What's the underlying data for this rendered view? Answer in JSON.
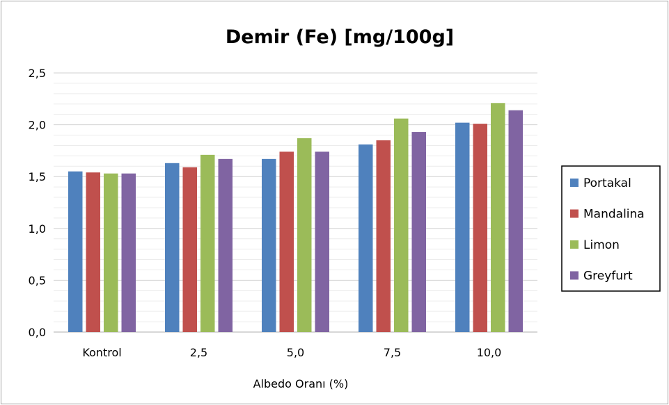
{
  "chart_data": {
    "type": "bar",
    "title": "Demir (Fe) [mg/100g]",
    "xlabel": "Albedo Oranı (%)",
    "ylabel": "",
    "categories": [
      "Kontrol",
      "2,5",
      "5,0",
      "7,5",
      "10,0"
    ],
    "y_ticks": [
      "0,0",
      "0,5",
      "1,0",
      "1,5",
      "2,0",
      "2,5"
    ],
    "ylim": [
      0,
      2.5
    ],
    "grid": true,
    "legend_position": "right",
    "series": [
      {
        "name": "Portakal",
        "color": "#4f81bd",
        "values": [
          1.55,
          1.63,
          1.67,
          1.81,
          2.02
        ]
      },
      {
        "name": "Mandalina",
        "color": "#c0504d",
        "values": [
          1.54,
          1.59,
          1.74,
          1.85,
          2.01
        ]
      },
      {
        "name": "Limon",
        "color": "#9bbb59",
        "values": [
          1.53,
          1.71,
          1.87,
          2.06,
          2.21
        ]
      },
      {
        "name": "Greyfurt",
        "color": "#8064a2",
        "values": [
          1.53,
          1.67,
          1.74,
          1.93,
          2.14
        ]
      }
    ]
  }
}
